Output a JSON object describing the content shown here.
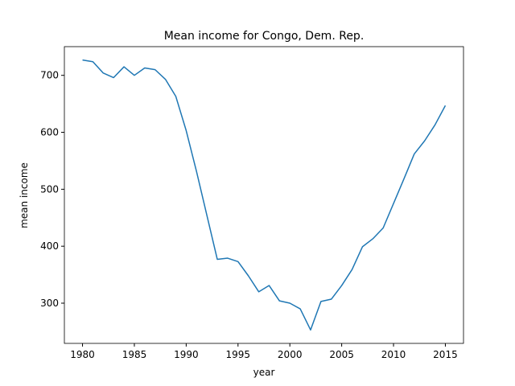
{
  "chart_data": {
    "type": "line",
    "title": "Mean income for Congo, Dem. Rep.",
    "x_label": "year",
    "y_label": "mean income",
    "x": [
      1980,
      1981,
      1982,
      1983,
      1984,
      1985,
      1986,
      1987,
      1988,
      1989,
      1990,
      1991,
      1992,
      1993,
      1994,
      1995,
      1996,
      1997,
      1998,
      1999,
      2000,
      2001,
      2002,
      2003,
      2004,
      2005,
      2006,
      2007,
      2008,
      2009,
      2010,
      2011,
      2012,
      2013,
      2014,
      2015
    ],
    "series": [
      {
        "name": "mean income",
        "color": "#1f77b4",
        "values": [
          727,
          724,
          704,
          696,
          715,
          700,
          713,
          710,
          693,
          663,
          603,
          531,
          454,
          377,
          379,
          373,
          348,
          320,
          331,
          304,
          300,
          290,
          253,
          303,
          307,
          331,
          359,
          399,
          413,
          432,
          475,
          518,
          562,
          585,
          613,
          647
        ]
      }
    ],
    "xlim": [
      1978.25,
      2016.75
    ],
    "ylim": [
      229.4,
      750.4
    ],
    "xticks": [
      1980,
      1985,
      1990,
      1995,
      2000,
      2005,
      2010,
      2015
    ],
    "yticks": [
      300,
      400,
      500,
      600,
      700
    ],
    "grid": false
  }
}
